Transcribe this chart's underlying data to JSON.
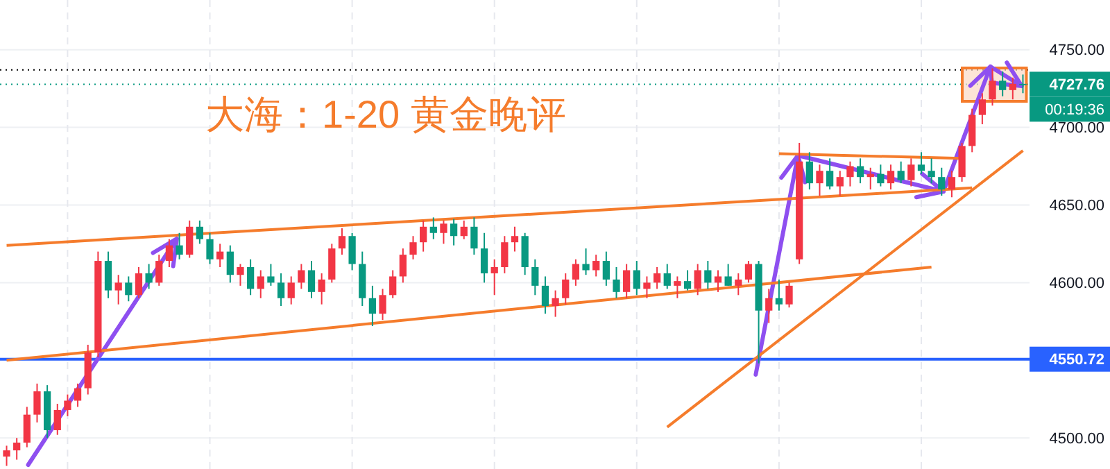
{
  "chart_data": {
    "type": "candlestick",
    "title": "大海：1-20 黄金晚评",
    "ohlc": [
      [
        4488,
        4495,
        4482,
        4492
      ],
      [
        4492,
        4500,
        4486,
        4497
      ],
      [
        4497,
        4520,
        4494,
        4515
      ],
      [
        4515,
        4535,
        4510,
        4530
      ],
      [
        4530,
        4534,
        4500,
        4505
      ],
      [
        4505,
        4522,
        4502,
        4518
      ],
      [
        4518,
        4528,
        4514,
        4524
      ],
      [
        4524,
        4535,
        4520,
        4532
      ],
      [
        4532,
        4560,
        4528,
        4555
      ],
      [
        4555,
        4620,
        4552,
        4614
      ],
      [
        4614,
        4620,
        4590,
        4595
      ],
      [
        4595,
        4605,
        4586,
        4600
      ],
      [
        4600,
        4604,
        4588,
        4592
      ],
      [
        4592,
        4610,
        4590,
        4606
      ],
      [
        4606,
        4612,
        4596,
        4600
      ],
      [
        4600,
        4618,
        4598,
        4614
      ],
      [
        4614,
        4628,
        4610,
        4624
      ],
      [
        4624,
        4632,
        4615,
        4618
      ],
      [
        4618,
        4640,
        4616,
        4636
      ],
      [
        4636,
        4640,
        4625,
        4628
      ],
      [
        4628,
        4632,
        4612,
        4615
      ],
      [
        4615,
        4625,
        4610,
        4620
      ],
      [
        4620,
        4624,
        4600,
        4605
      ],
      [
        4605,
        4612,
        4598,
        4610
      ],
      [
        4610,
        4615,
        4592,
        4596
      ],
      [
        4596,
        4608,
        4590,
        4604
      ],
      [
        4604,
        4612,
        4598,
        4600
      ],
      [
        4600,
        4606,
        4585,
        4590
      ],
      [
        4590,
        4604,
        4586,
        4600
      ],
      [
        4600,
        4612,
        4596,
        4608
      ],
      [
        4608,
        4614,
        4590,
        4594
      ],
      [
        4594,
        4606,
        4586,
        4602
      ],
      [
        4602,
        4625,
        4600,
        4622
      ],
      [
        4622,
        4635,
        4618,
        4630
      ],
      [
        4630,
        4632,
        4608,
        4612
      ],
      [
        4612,
        4620,
        4585,
        4590
      ],
      [
        4590,
        4598,
        4572,
        4580
      ],
      [
        4580,
        4596,
        4576,
        4592
      ],
      [
        4592,
        4608,
        4590,
        4604
      ],
      [
        4604,
        4622,
        4600,
        4618
      ],
      [
        4618,
        4630,
        4615,
        4626
      ],
      [
        4626,
        4640,
        4620,
        4636
      ],
      [
        4636,
        4642,
        4628,
        4632
      ],
      [
        4632,
        4640,
        4625,
        4638
      ],
      [
        4638,
        4641,
        4624,
        4630
      ],
      [
        4630,
        4640,
        4628,
        4636
      ],
      [
        4636,
        4642,
        4618,
        4622
      ],
      [
        4622,
        4632,
        4600,
        4606
      ],
      [
        4606,
        4615,
        4592,
        4610
      ],
      [
        4610,
        4630,
        4606,
        4626
      ],
      [
        4626,
        4636,
        4620,
        4630
      ],
      [
        4630,
        4632,
        4605,
        4610
      ],
      [
        4610,
        4615,
        4592,
        4598
      ],
      [
        4598,
        4604,
        4580,
        4585
      ],
      [
        4585,
        4595,
        4578,
        4590
      ],
      [
        4590,
        4606,
        4586,
        4602
      ],
      [
        4602,
        4615,
        4598,
        4612
      ],
      [
        4612,
        4622,
        4605,
        4608
      ],
      [
        4608,
        4618,
        4604,
        4614
      ],
      [
        4614,
        4620,
        4598,
        4602
      ],
      [
        4602,
        4610,
        4590,
        4594
      ],
      [
        4594,
        4612,
        4590,
        4608
      ],
      [
        4608,
        4614,
        4592,
        4596
      ],
      [
        4596,
        4604,
        4590,
        4600
      ],
      [
        4600,
        4610,
        4596,
        4606
      ],
      [
        4606,
        4612,
        4596,
        4598
      ],
      [
        4598,
        4604,
        4590,
        4601
      ],
      [
        4601,
        4608,
        4595,
        4596
      ],
      [
        4596,
        4612,
        4592,
        4608
      ],
      [
        4608,
        4614,
        4596,
        4600
      ],
      [
        4600,
        4608,
        4594,
        4604
      ],
      [
        4604,
        4612,
        4598,
        4598
      ],
      [
        4598,
        4606,
        4592,
        4602
      ],
      [
        4602,
        4614,
        4600,
        4612
      ],
      [
        4612,
        4614,
        4548,
        4582
      ],
      [
        4582,
        4596,
        4574,
        4590
      ],
      [
        4590,
        4602,
        4582,
        4586
      ],
      [
        4586,
        4600,
        4584,
        4598
      ],
      [
        4615,
        4690,
        4612,
        4678
      ],
      [
        4678,
        4684,
        4660,
        4664
      ],
      [
        4664,
        4676,
        4656,
        4672
      ],
      [
        4672,
        4680,
        4660,
        4662
      ],
      [
        4662,
        4672,
        4656,
        4668
      ],
      [
        4668,
        4678,
        4662,
        4675
      ],
      [
        4675,
        4680,
        4664,
        4668
      ],
      [
        4668,
        4674,
        4660,
        4670
      ],
      [
        4670,
        4676,
        4662,
        4664
      ],
      [
        4664,
        4676,
        4660,
        4672
      ],
      [
        4672,
        4678,
        4664,
        4666
      ],
      [
        4666,
        4680,
        4662,
        4676
      ],
      [
        4676,
        4684,
        4670,
        4672
      ],
      [
        4672,
        4680,
        4664,
        4668
      ],
      [
        4668,
        4674,
        4656,
        4660
      ],
      [
        4660,
        4672,
        4655,
        4668
      ],
      [
        4668,
        4690,
        4665,
        4688
      ],
      [
        4688,
        4712,
        4684,
        4708
      ],
      [
        4708,
        4722,
        4702,
        4718
      ],
      [
        4718,
        4738,
        4714,
        4730
      ],
      [
        4730,
        4736,
        4720,
        4724
      ],
      [
        4724,
        4732,
        4718,
        4728
      ],
      [
        4728,
        4734,
        4722,
        4727.76
      ]
    ],
    "categories": [
      null,
      null,
      null,
      null,
      null,
      null,
      null,
      null,
      null,
      null,
      null,
      null,
      null,
      null,
      null,
      null,
      null,
      null,
      null,
      null,
      null,
      null,
      null,
      null,
      null,
      null,
      null,
      null,
      null,
      null,
      null,
      null,
      null,
      null,
      null,
      null,
      null,
      null,
      null,
      null,
      null,
      null,
      null,
      null,
      null,
      null,
      null,
      null,
      null,
      null,
      null,
      null,
      null,
      null,
      null,
      null,
      null,
      null,
      null,
      null,
      null,
      null,
      null,
      null,
      null,
      null,
      null,
      null,
      null,
      null,
      null,
      null,
      null,
      null,
      null,
      null,
      null,
      null,
      null,
      null,
      null,
      null,
      null,
      null,
      null,
      null,
      null,
      null,
      null,
      null,
      null,
      null,
      null,
      null,
      null,
      null,
      null,
      null,
      null,
      null,
      null
    ],
    "colors": [
      "#f23645",
      "#f23645",
      "#f23645",
      "#f23645",
      "#089981",
      "#f23645",
      "#f23645",
      "#f23645",
      "#f23645",
      "#f23645",
      "#089981",
      "#f23645",
      "#089981",
      "#f23645",
      "#089981",
      "#f23645",
      "#f23645",
      "#089981",
      "#f23645",
      "#089981",
      "#089981",
      "#f23645",
      "#089981",
      "#f23645",
      "#089981",
      "#f23645",
      "#089981",
      "#089981",
      "#f23645",
      "#f23645",
      "#089981",
      "#f23645",
      "#f23645",
      "#f23645",
      "#089981",
      "#089981",
      "#089981",
      "#f23645",
      "#f23645",
      "#f23645",
      "#f23645",
      "#f23645",
      "#089981",
      "#f23645",
      "#089981",
      "#f23645",
      "#089981",
      "#089981",
      "#f23645",
      "#f23645",
      "#f23645",
      "#089981",
      "#089981",
      "#089981",
      "#f23645",
      "#f23645",
      "#f23645",
      "#089981",
      "#f23645",
      "#089981",
      "#089981",
      "#f23645",
      "#089981",
      "#f23645",
      "#f23645",
      "#089981",
      "#f23645",
      "#089981",
      "#f23645",
      "#089981",
      "#f23645",
      "#089981",
      "#f23645",
      "#f23645",
      "#089981",
      "#f23645",
      "#089981",
      "#f23645",
      "#f23645",
      "#089981",
      "#f23645",
      "#089981",
      "#f23645",
      "#f23645",
      "#089981",
      "#f23645",
      "#089981",
      "#f23645",
      "#089981",
      "#f23645",
      "#089981",
      "#089981",
      "#089981",
      "#f23645",
      "#f23645",
      "#f23645",
      "#f23645",
      "#f23645",
      "#089981",
      "#f23645",
      "#089981"
    ],
    "ylim": [
      4480,
      4782
    ],
    "yticks": [
      {
        "value": 4500,
        "label": "4500.00"
      },
      {
        "value": 4550,
        "label": null
      },
      {
        "value": 4600,
        "label": "4600.00"
      },
      {
        "value": 4650,
        "label": "4650.00"
      },
      {
        "value": 4700,
        "label": "4700.00"
      },
      {
        "value": 4750,
        "label": "4750.00"
      }
    ],
    "grid": true,
    "series": [
      {
        "type": "line",
        "color": "#f57c2c",
        "values": [
          4624,
          null,
          null,
          null,
          null,
          null,
          null,
          null,
          null,
          null,
          null,
          null,
          null,
          null,
          null,
          null,
          null,
          null,
          null,
          null,
          null,
          null,
          null,
          null,
          null,
          null,
          null,
          null,
          null,
          null,
          null,
          null,
          null,
          null,
          null,
          null,
          null,
          null,
          null,
          null,
          null,
          null,
          null,
          null,
          null,
          null,
          null,
          null,
          null,
          null,
          null,
          null,
          null,
          null,
          null,
          null,
          null,
          null,
          null,
          null,
          null,
          null,
          null,
          null,
          null,
          null,
          null,
          null,
          null,
          null,
          null,
          null,
          null,
          null,
          null,
          null,
          null,
          null,
          null,
          null,
          null,
          null,
          null,
          null,
          null,
          null,
          null,
          null,
          null,
          null,
          null,
          null,
          null,
          null,
          null,
          4661,
          null,
          null,
          null,
          null,
          null
        ]
      },
      {
        "type": "line",
        "color": "#f57c2c",
        "values": [
          4550,
          null,
          null,
          null,
          null,
          null,
          null,
          null,
          null,
          null,
          null,
          null,
          null,
          null,
          null,
          null,
          null,
          null,
          null,
          null,
          null,
          null,
          null,
          null,
          null,
          null,
          null,
          null,
          null,
          null,
          null,
          null,
          null,
          null,
          null,
          null,
          null,
          null,
          null,
          null,
          null,
          null,
          null,
          null,
          null,
          null,
          null,
          null,
          null,
          null,
          null,
          null,
          null,
          null,
          null,
          null,
          null,
          null,
          null,
          null,
          null,
          null,
          null,
          null,
          null,
          null,
          null,
          null,
          null,
          null,
          null,
          null,
          null,
          null,
          null,
          null,
          null,
          null,
          null,
          null,
          null,
          null,
          null,
          null,
          null,
          null,
          null,
          null,
          null,
          null,
          null,
          4610,
          null,
          null,
          null,
          null,
          null,
          null,
          null,
          null,
          null
        ]
      },
      {
        "type": "line",
        "color": "#f57c2c",
        "values": [
          null,
          null,
          null,
          null,
          null,
          null,
          null,
          null,
          null,
          null,
          null,
          null,
          null,
          null,
          null,
          null,
          null,
          null,
          null,
          null,
          null,
          null,
          null,
          null,
          null,
          null,
          null,
          null,
          null,
          null,
          null,
          null,
          null,
          null,
          null,
          null,
          null,
          null,
          null,
          null,
          null,
          null,
          null,
          null,
          null,
          null,
          null,
          null,
          null,
          null,
          null,
          null,
          null,
          null,
          null,
          null,
          null,
          null,
          null,
          null,
          null,
          null,
          null,
          null,
          null,
          null,
          null,
          null,
          null,
          null,
          null,
          null,
          null,
          null,
          null,
          null,
          4683,
          null,
          null,
          null,
          null,
          null,
          null,
          null,
          null,
          null,
          null,
          null,
          null,
          null,
          null,
          null,
          null,
          null,
          4680,
          null,
          null,
          null,
          null,
          null,
          null
        ]
      },
      {
        "type": "line",
        "color": "#f57c2c",
        "values": [
          null,
          null,
          null,
          null,
          null,
          null,
          null,
          null,
          null,
          null,
          null,
          null,
          null,
          null,
          null,
          null,
          null,
          null,
          null,
          null,
          null,
          null,
          null,
          null,
          null,
          null,
          null,
          null,
          null,
          null,
          null,
          null,
          null,
          null,
          null,
          null,
          null,
          null,
          null,
          null,
          null,
          null,
          null,
          null,
          null,
          null,
          null,
          null,
          null,
          null,
          null,
          null,
          null,
          null,
          null,
          null,
          null,
          null,
          null,
          null,
          null,
          null,
          null,
          null,
          null,
          4507,
          null,
          null,
          null,
          null,
          null,
          null,
          null,
          null,
          null,
          null,
          null,
          null,
          null,
          null,
          null,
          null,
          null,
          null,
          null,
          null,
          null,
          null,
          null,
          null,
          null,
          null,
          null,
          null,
          null,
          null,
          null,
          null,
          null,
          null,
          4685
        ]
      }
    ],
    "ref_lines": [
      {
        "axis": "y",
        "value": 4550.72,
        "label": "4550.72",
        "color": "#2962ff",
        "line_style": "solid"
      },
      {
        "axis": "y",
        "value": 4727.76,
        "label": "4727.76",
        "color": "#089981",
        "line_style": "dotted"
      },
      {
        "axis": "y",
        "value": 4737,
        "label": null,
        "color": "#000000",
        "line_style": "dotted"
      }
    ],
    "annotations": [
      "00:19:36"
    ]
  }
}
